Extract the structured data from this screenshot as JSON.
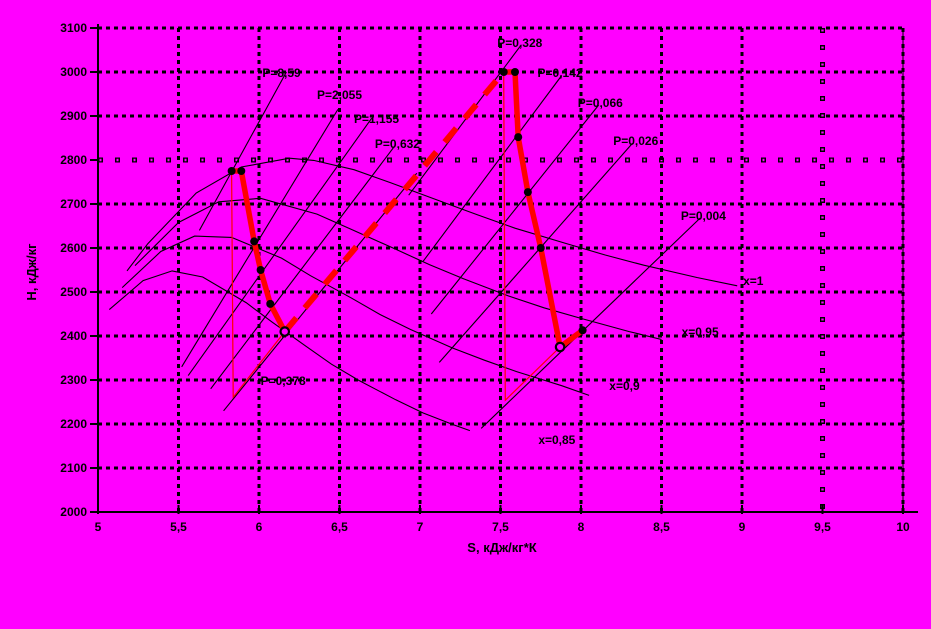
{
  "window": {
    "background": "#FF00FF"
  },
  "chart_data": {
    "type": "line",
    "title": "",
    "xlabel": "S, кДж/кг*К",
    "ylabel": "Н, кДж/кг",
    "xlim": [
      5,
      10
    ],
    "ylim": [
      2000,
      3100
    ],
    "grid": true,
    "legend": "none",
    "colors": {
      "background": "#FF00FF",
      "axis": "#000000",
      "gridline": "#000000",
      "curves": "#000000",
      "process": "#FF0000"
    },
    "x_ticks": [
      {
        "v": 5.0,
        "label": "5"
      },
      {
        "v": 5.5,
        "label": "5,5"
      },
      {
        "v": 6.0,
        "label": "6"
      },
      {
        "v": 6.5,
        "label": "6,5"
      },
      {
        "v": 7.0,
        "label": "7"
      },
      {
        "v": 7.5,
        "label": "7,5"
      },
      {
        "v": 8.0,
        "label": "8"
      },
      {
        "v": 8.5,
        "label": "8,5"
      },
      {
        "v": 9.0,
        "label": "9"
      },
      {
        "v": 9.5,
        "label": "9,5"
      },
      {
        "v": 10.0,
        "label": "10"
      }
    ],
    "y_ticks": [
      {
        "v": 2000,
        "label": "2000"
      },
      {
        "v": 2100,
        "label": "2100"
      },
      {
        "v": 2200,
        "label": "2200"
      },
      {
        "v": 2300,
        "label": "2300"
      },
      {
        "v": 2400,
        "label": "2400"
      },
      {
        "v": 2500,
        "label": "2500"
      },
      {
        "v": 2600,
        "label": "2600"
      },
      {
        "v": 2700,
        "label": "2700"
      },
      {
        "v": 2800,
        "label": "2800"
      },
      {
        "v": 2900,
        "label": "2900"
      },
      {
        "v": 3000,
        "label": "3000"
      },
      {
        "v": 3100,
        "label": "3100"
      }
    ],
    "hollow_gridlines": {
      "horizontal": [
        2800
      ],
      "vertical": [
        9.5
      ]
    },
    "isobars": [
      {
        "label": "P=8,59",
        "points": [
          [
            5.63,
            2640
          ],
          [
            6.17,
            3000
          ]
        ],
        "label_pos": [
          6.14,
          2998
        ]
      },
      {
        "label": "P=2,055",
        "points": [
          [
            5.52,
            2330
          ],
          [
            6.49,
            2915
          ]
        ],
        "label_pos": [
          6.5,
          2948
        ]
      },
      {
        "label": "P=1,155",
        "points": [
          [
            5.56,
            2310
          ],
          [
            6.7,
            2895
          ]
        ],
        "label_pos": [
          6.73,
          2893
        ]
      },
      {
        "label": "P=0,632",
        "points": [
          [
            5.7,
            2280
          ],
          [
            6.85,
            2835
          ]
        ],
        "label_pos": [
          6.86,
          2836
        ]
      },
      {
        "label": "P=0,378",
        "points": [
          [
            5.78,
            2230
          ],
          [
            6.98,
            2770
          ]
        ],
        "label_pos": [
          6.15,
          2298
        ]
      },
      {
        "label": "P=0,328",
        "points": [
          [
            6.93,
            2720
          ],
          [
            7.63,
            3062
          ]
        ],
        "label_pos": [
          7.62,
          3066
        ]
      },
      {
        "label": "P=0,142",
        "points": [
          [
            7.02,
            2570
          ],
          [
            7.88,
            2992
          ]
        ],
        "label_pos": [
          7.87,
          2998
        ]
      },
      {
        "label": "P=0,066",
        "points": [
          [
            7.07,
            2450
          ],
          [
            8.11,
            2925
          ]
        ],
        "label_pos": [
          8.12,
          2930
        ]
      },
      {
        "label": "P=0,026",
        "points": [
          [
            7.12,
            2340
          ],
          [
            8.32,
            2838
          ]
        ],
        "label_pos": [
          8.34,
          2843
        ]
      },
      {
        "label": "P=0,004",
        "points": [
          [
            7.38,
            2190
          ],
          [
            8.74,
            2668
          ]
        ],
        "label_pos": [
          8.76,
          2673
        ]
      }
    ],
    "quality_lines": [
      {
        "label": "x=1",
        "points": [
          [
            5.18,
            2548
          ],
          [
            5.31,
            2610
          ],
          [
            5.61,
            2725
          ],
          [
            5.89,
            2784
          ],
          [
            6.19,
            2804
          ],
          [
            6.34,
            2799
          ],
          [
            6.59,
            2778
          ],
          [
            6.82,
            2748
          ],
          [
            7.13,
            2706
          ],
          [
            7.36,
            2675
          ],
          [
            7.59,
            2645
          ],
          [
            7.91,
            2610
          ],
          [
            8.15,
            2584
          ],
          [
            8.39,
            2561
          ],
          [
            8.72,
            2533
          ],
          [
            8.97,
            2514
          ]
        ],
        "label_pos": [
          9.07,
          2525
        ]
      },
      {
        "label": "x=0,95",
        "points": [
          [
            5.23,
            2560
          ],
          [
            5.5,
            2658
          ],
          [
            5.75,
            2705
          ],
          [
            6.01,
            2713
          ],
          [
            6.36,
            2677
          ],
          [
            6.57,
            2643
          ],
          [
            6.85,
            2597
          ],
          [
            7.06,
            2562
          ],
          [
            7.27,
            2530
          ],
          [
            7.55,
            2491
          ],
          [
            7.77,
            2464
          ],
          [
            8.0,
            2440
          ],
          [
            8.3,
            2410
          ],
          [
            8.5,
            2392
          ]
        ],
        "label_pos": [
          8.74,
          2409
        ]
      },
      {
        "label": "x=0,9",
        "points": [
          [
            5.15,
            2510
          ],
          [
            5.39,
            2592
          ],
          [
            5.6,
            2627
          ],
          [
            5.83,
            2624
          ],
          [
            6.14,
            2577
          ],
          [
            6.32,
            2537
          ],
          [
            6.57,
            2487
          ],
          [
            6.75,
            2449
          ],
          [
            6.94,
            2415
          ],
          [
            7.2,
            2373
          ],
          [
            7.4,
            2345
          ],
          [
            7.6,
            2319
          ],
          [
            7.88,
            2287
          ],
          [
            8.05,
            2265
          ]
        ],
        "label_pos": [
          8.27,
          2286
        ]
      },
      {
        "label": "x=0,85",
        "points": [
          [
            5.07,
            2460
          ],
          [
            5.28,
            2526
          ],
          [
            5.46,
            2548
          ],
          [
            5.65,
            2534
          ],
          [
            5.92,
            2476
          ],
          [
            6.08,
            2432
          ],
          [
            6.29,
            2377
          ],
          [
            6.45,
            2336
          ],
          [
            6.62,
            2299
          ],
          [
            6.85,
            2255
          ],
          [
            7.02,
            2225
          ],
          [
            7.21,
            2198
          ],
          [
            7.31,
            2185
          ]
        ],
        "label_pos": [
          7.85,
          2164
        ]
      }
    ],
    "process": {
      "color": "#FF0000",
      "hp_expansion": {
        "points": [
          [
            5.83,
            2775
          ],
          [
            5.89,
            2775
          ],
          [
            5.97,
            2615
          ],
          [
            6.01,
            2550
          ],
          [
            6.07,
            2473
          ],
          [
            6.16,
            2410
          ]
        ],
        "dot_markers": [
          [
            5.83,
            2775
          ],
          [
            5.89,
            2775
          ],
          [
            5.97,
            2615
          ],
          [
            6.01,
            2550
          ],
          [
            6.07,
            2473
          ]
        ],
        "open_markers": [
          [
            6.16,
            2410
          ]
        ]
      },
      "reheat_dashed": {
        "points": [
          [
            6.16,
            2410
          ],
          [
            7.52,
            3000
          ]
        ]
      },
      "lp_expansion": {
        "points": [
          [
            7.52,
            3000
          ],
          [
            7.59,
            3000
          ],
          [
            7.61,
            2852
          ],
          [
            7.67,
            2727
          ],
          [
            7.75,
            2600
          ],
          [
            7.87,
            2375
          ],
          [
            8.01,
            2413
          ]
        ],
        "dot_markers": [
          [
            7.52,
            3000
          ],
          [
            7.59,
            3000
          ],
          [
            7.61,
            2852
          ],
          [
            7.67,
            2727
          ],
          [
            7.75,
            2600
          ],
          [
            8.01,
            2413
          ]
        ],
        "open_markers": [
          [
            7.87,
            2375
          ]
        ]
      },
      "ideal_expansion": [
        {
          "points": [
            [
              5.83,
              2775
            ],
            [
              5.84,
              2261
            ],
            [
              6.16,
              2410
            ]
          ]
        },
        {
          "points": [
            [
              7.52,
              3000
            ],
            [
              7.53,
              2254
            ],
            [
              7.87,
              2375
            ]
          ]
        }
      ]
    }
  }
}
